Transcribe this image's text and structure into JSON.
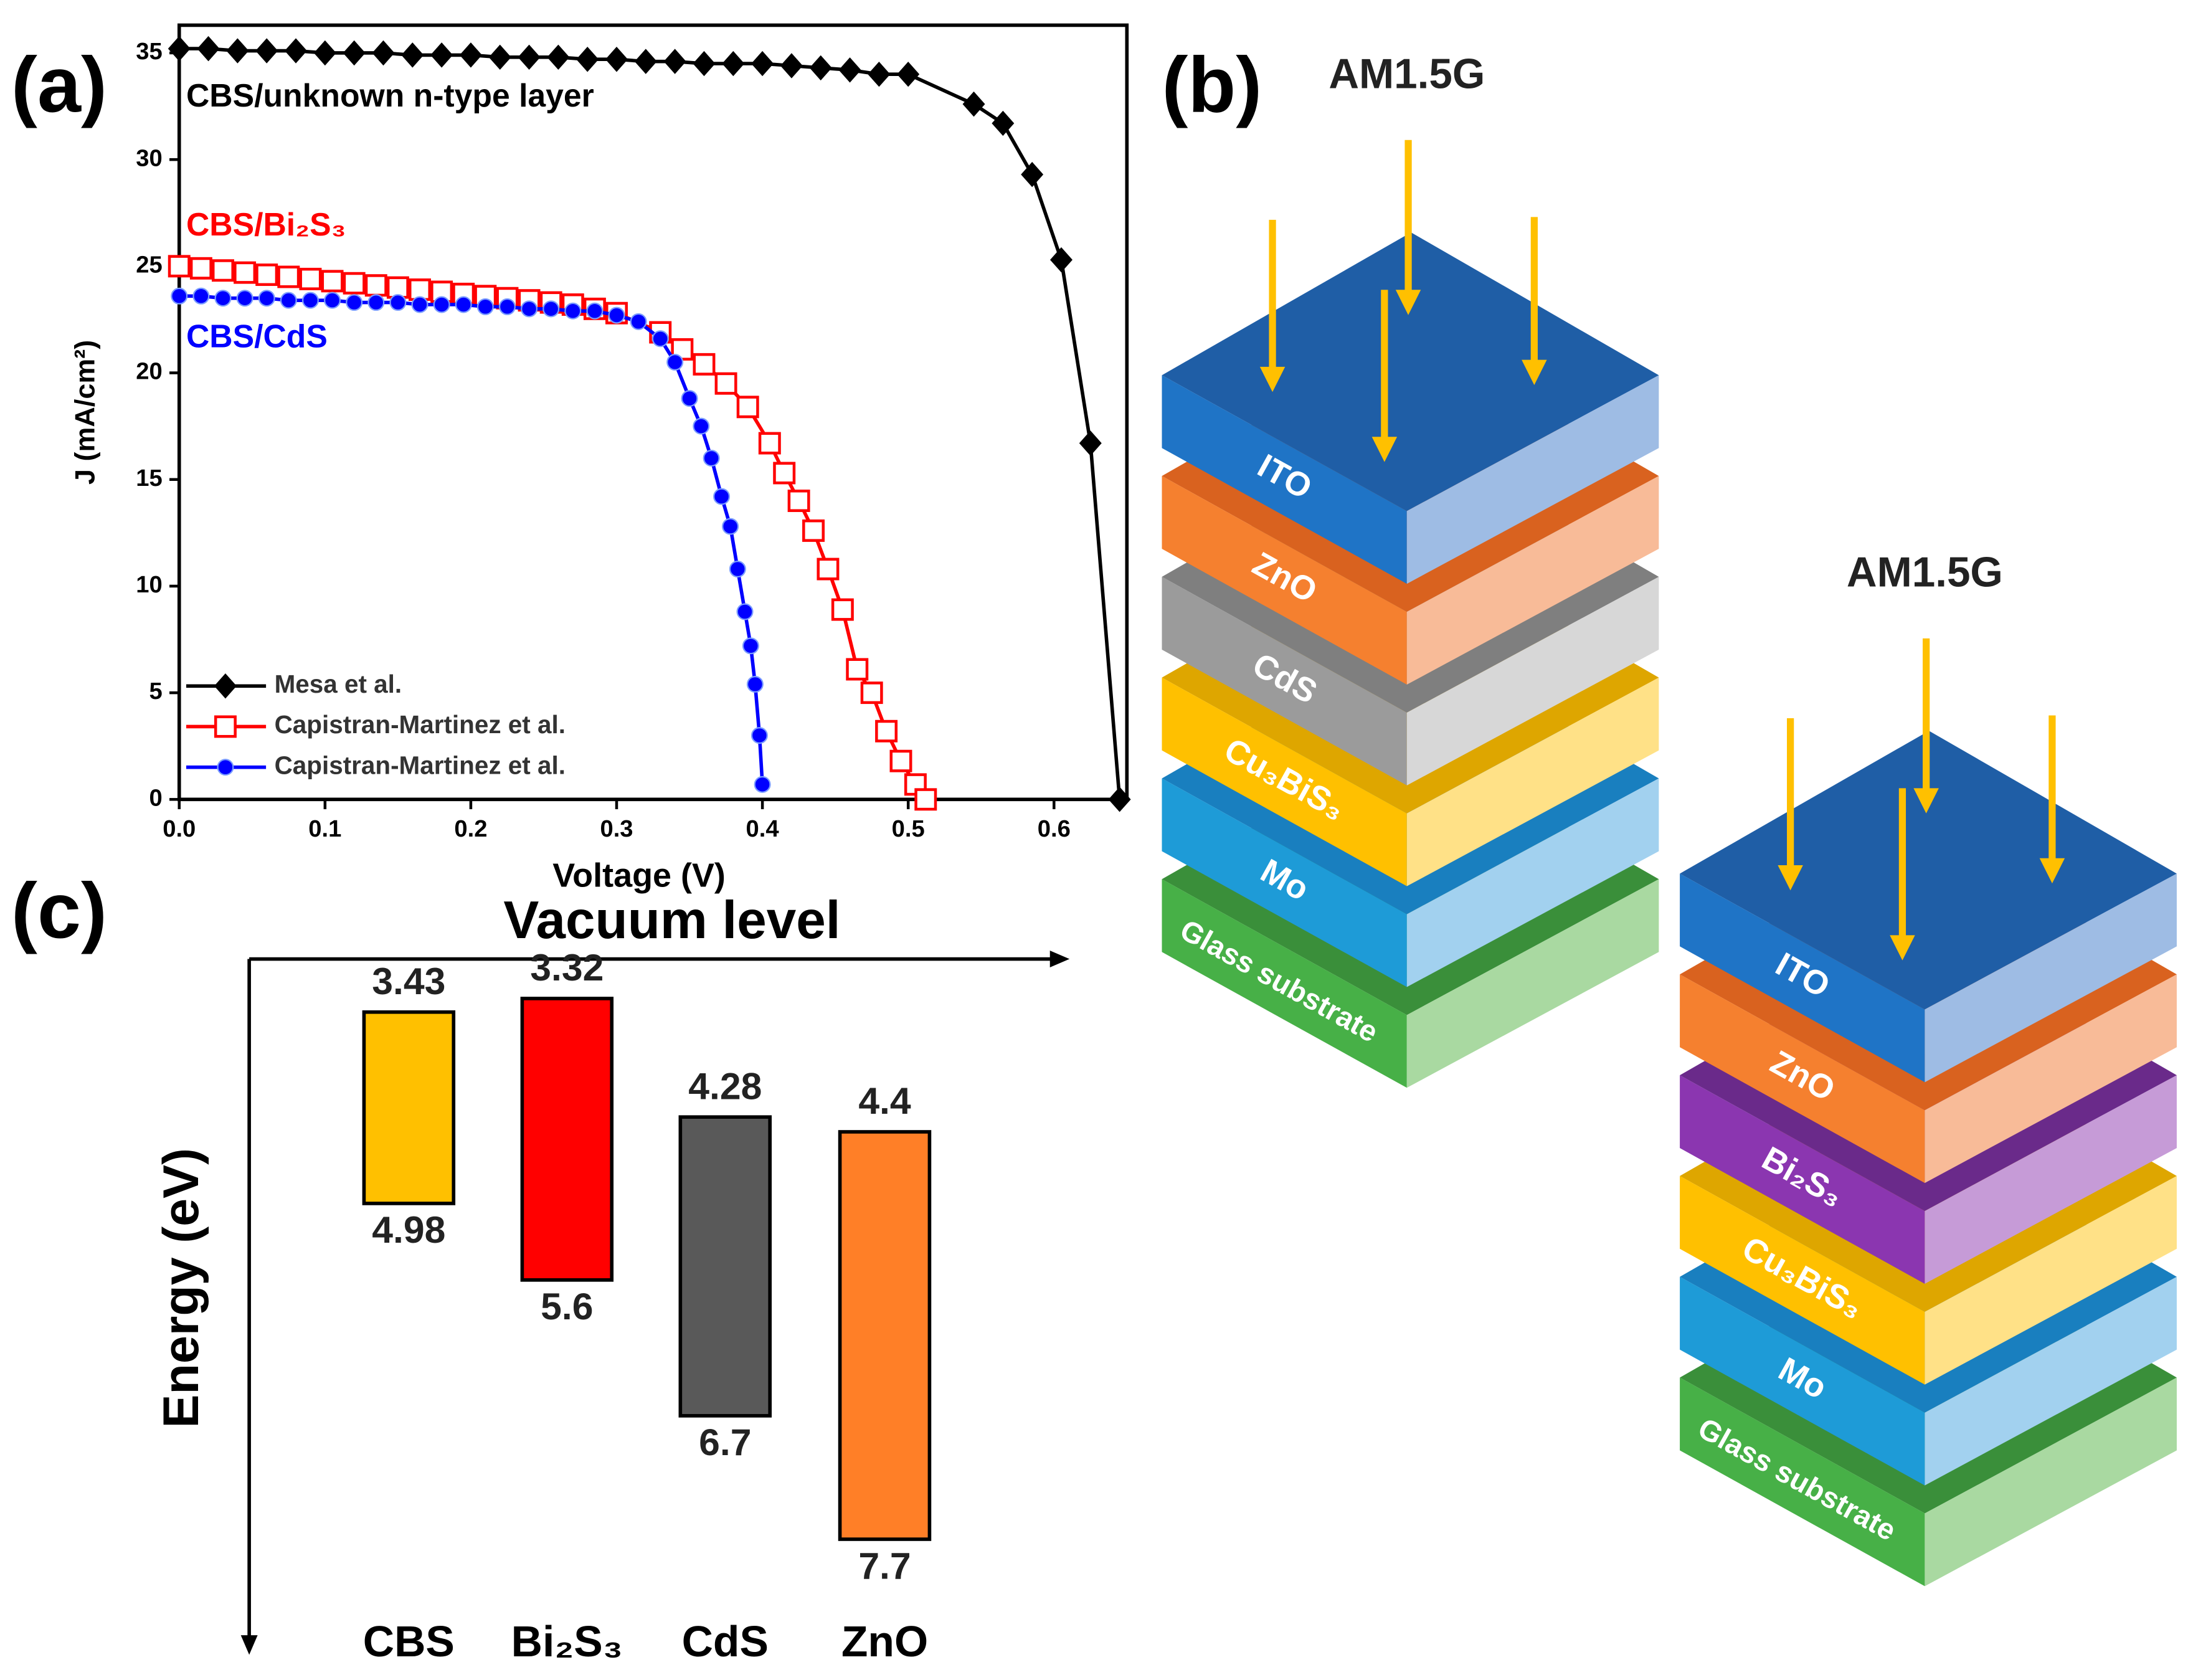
{
  "chart_data": [
    {
      "type": "line",
      "panel": "(a)",
      "xlabel": "Voltage (V)",
      "ylabel": "J (mA/cm²)",
      "xlim": [
        0,
        0.65
      ],
      "ylim": [
        0,
        36.3
      ],
      "xticks": [
        {
          "value": 0,
          "label": "0.0"
        },
        0.1,
        0.2,
        0.3,
        0.4,
        0.5,
        0.6
      ],
      "yticks": [
        0,
        5,
        10,
        15,
        20,
        25,
        30,
        35
      ],
      "legend": "lower left",
      "annotations": [
        {
          "text": "CBS/unknown n-type layer",
          "color": "#000000"
        },
        {
          "text": "CBS/Bi₂S₃",
          "color": "#ff0000"
        },
        {
          "text": "CBS/CdS",
          "color": "#0000ff"
        }
      ],
      "series": [
        {
          "name": "Mesa et al.",
          "color": "#000000",
          "marker": "diamond",
          "x": [
            0,
            0.02,
            0.04,
            0.06,
            0.08,
            0.1,
            0.12,
            0.14,
            0.16,
            0.18,
            0.2,
            0.22,
            0.24,
            0.26,
            0.28,
            0.3,
            0.32,
            0.34,
            0.36,
            0.38,
            0.4,
            0.42,
            0.44,
            0.46,
            0.48,
            0.5,
            0.545,
            0.565,
            0.585,
            0.605,
            0.625,
            0.645
          ],
          "values": [
            35.2,
            35.2,
            35.1,
            35.1,
            35.1,
            35.0,
            35.0,
            35.0,
            34.9,
            34.9,
            34.9,
            34.8,
            34.8,
            34.8,
            34.7,
            34.7,
            34.6,
            34.6,
            34.5,
            34.5,
            34.5,
            34.4,
            34.3,
            34.2,
            34.0,
            34.0,
            32.6,
            31.7,
            29.3,
            25.3,
            16.7,
            0
          ]
        },
        {
          "name": "Capistran-Martinez et al.",
          "color": "#ff0000",
          "marker": "square",
          "x": [
            0,
            0.015,
            0.03,
            0.045,
            0.06,
            0.075,
            0.09,
            0.105,
            0.12,
            0.135,
            0.15,
            0.165,
            0.18,
            0.195,
            0.21,
            0.225,
            0.24,
            0.255,
            0.27,
            0.285,
            0.3,
            0.33,
            0.345,
            0.36,
            0.375,
            0.39,
            0.405,
            0.415,
            0.425,
            0.435,
            0.445,
            0.455,
            0.465,
            0.475,
            0.485,
            0.495,
            0.505,
            0.512
          ],
          "values": [
            25.0,
            24.9,
            24.8,
            24.7,
            24.6,
            24.5,
            24.4,
            24.3,
            24.2,
            24.1,
            24.0,
            23.9,
            23.8,
            23.7,
            23.6,
            23.5,
            23.4,
            23.3,
            23.2,
            23.0,
            22.8,
            21.9,
            21.1,
            20.4,
            19.5,
            18.4,
            16.7,
            15.3,
            14.0,
            12.6,
            10.8,
            8.9,
            6.1,
            5.0,
            3.2,
            1.8,
            0.7,
            0
          ]
        },
        {
          "name": "Capistran-Martinez et al.",
          "color": "#0000ff",
          "marker": "circle",
          "x": [
            0,
            0.015,
            0.03,
            0.045,
            0.06,
            0.075,
            0.09,
            0.105,
            0.12,
            0.135,
            0.15,
            0.165,
            0.18,
            0.195,
            0.21,
            0.225,
            0.24,
            0.255,
            0.27,
            0.285,
            0.3,
            0.315,
            0.33,
            0.34,
            0.35,
            0.358,
            0.365,
            0.372,
            0.378,
            0.383,
            0.388,
            0.392,
            0.395,
            0.398,
            0.4
          ],
          "values": [
            23.6,
            23.6,
            23.5,
            23.5,
            23.5,
            23.4,
            23.4,
            23.4,
            23.3,
            23.3,
            23.3,
            23.2,
            23.2,
            23.2,
            23.1,
            23.1,
            23.0,
            23.0,
            22.9,
            22.9,
            22.7,
            22.4,
            21.6,
            20.5,
            18.8,
            17.5,
            16.0,
            14.2,
            12.8,
            10.8,
            8.8,
            7.2,
            5.4,
            3.0,
            0.7
          ]
        }
      ]
    },
    {
      "type": "floating_bar",
      "panel": "(c)",
      "xlabel": "Vacuum level",
      "ylabel": "Energy (eV)",
      "ylim": [
        3.0,
        8.5
      ],
      "inverted": true,
      "categories": [
        "CBS",
        "Bi₂S₃",
        "CdS",
        "ZnO"
      ],
      "start": [
        3.43,
        3.32,
        4.28,
        4.4
      ],
      "end": [
        4.98,
        5.6,
        6.7,
        7.7
      ],
      "colors": [
        "#ffc000",
        "#ff0000",
        "#595959",
        "#ff7f27"
      ]
    }
  ],
  "diagram": {
    "panel": "(b)",
    "stacks": [
      {
        "light": "AM1.5G",
        "layers": [
          "ITO",
          "ZnO",
          "CdS",
          "Cu₃BiS₃",
          "Mo",
          "Glass substrate"
        ]
      },
      {
        "light": "AM1.5G",
        "layers": [
          "ITO",
          "ZnO",
          "Bi₂S₃",
          "Cu₃BiS₃",
          "Mo",
          "Glass substrate"
        ]
      }
    ]
  }
}
